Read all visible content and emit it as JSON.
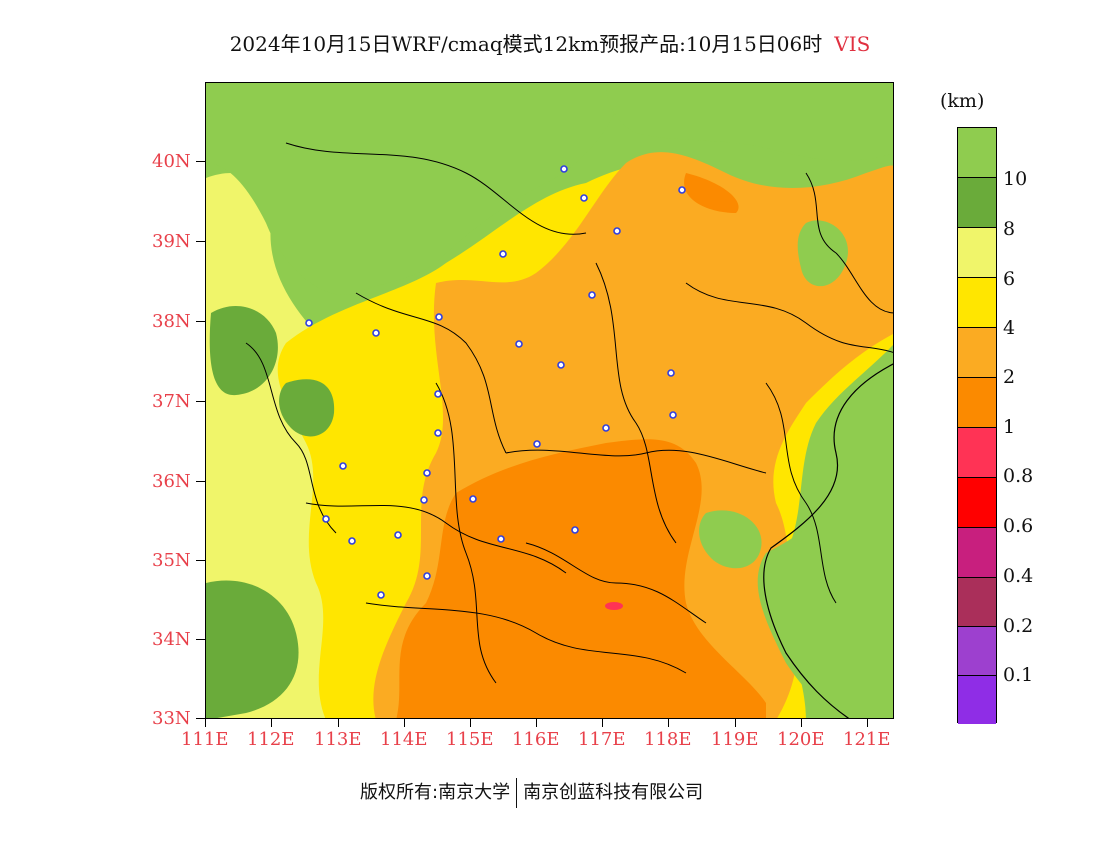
{
  "title": {
    "text": "2024年10月15日WRF/cmaq模式12km预报产品:10月15日06时",
    "variable": "VIS"
  },
  "axes": {
    "lat_labels": [
      "40N",
      "39N",
      "38N",
      "37N",
      "36N",
      "35N",
      "34N",
      "33N"
    ],
    "lon_labels": [
      "111E",
      "112E",
      "113E",
      "114E",
      "115E",
      "116E",
      "117E",
      "118E",
      "119E",
      "120E",
      "121E"
    ],
    "lat_range": [
      33,
      41
    ],
    "lon_range": [
      111,
      121.4
    ]
  },
  "colorbar": {
    "unit": "(km)",
    "labels": [
      "10",
      "8",
      "6",
      "4",
      "2",
      "1",
      "0.8",
      "0.6",
      "0.4",
      "0.2",
      "0.1"
    ],
    "colors": [
      "#8fcc4f",
      "#6aab3a",
      "#f0f56a",
      "#ffe600",
      "#fbab22",
      "#fb8a00",
      "#ff3355",
      "#ff0000",
      "#c81f7e",
      "#aa2f5a",
      "#9d40cf",
      "#8f2de6"
    ]
  },
  "footer": {
    "copyright": "版权所有:南京大学",
    "company": "南京创蓝科技有限公司"
  },
  "colors": {
    "axis_label": "#e8404a",
    "station_marker": "#2f3ee0",
    "land_high_vis": "#8fcc4f"
  }
}
